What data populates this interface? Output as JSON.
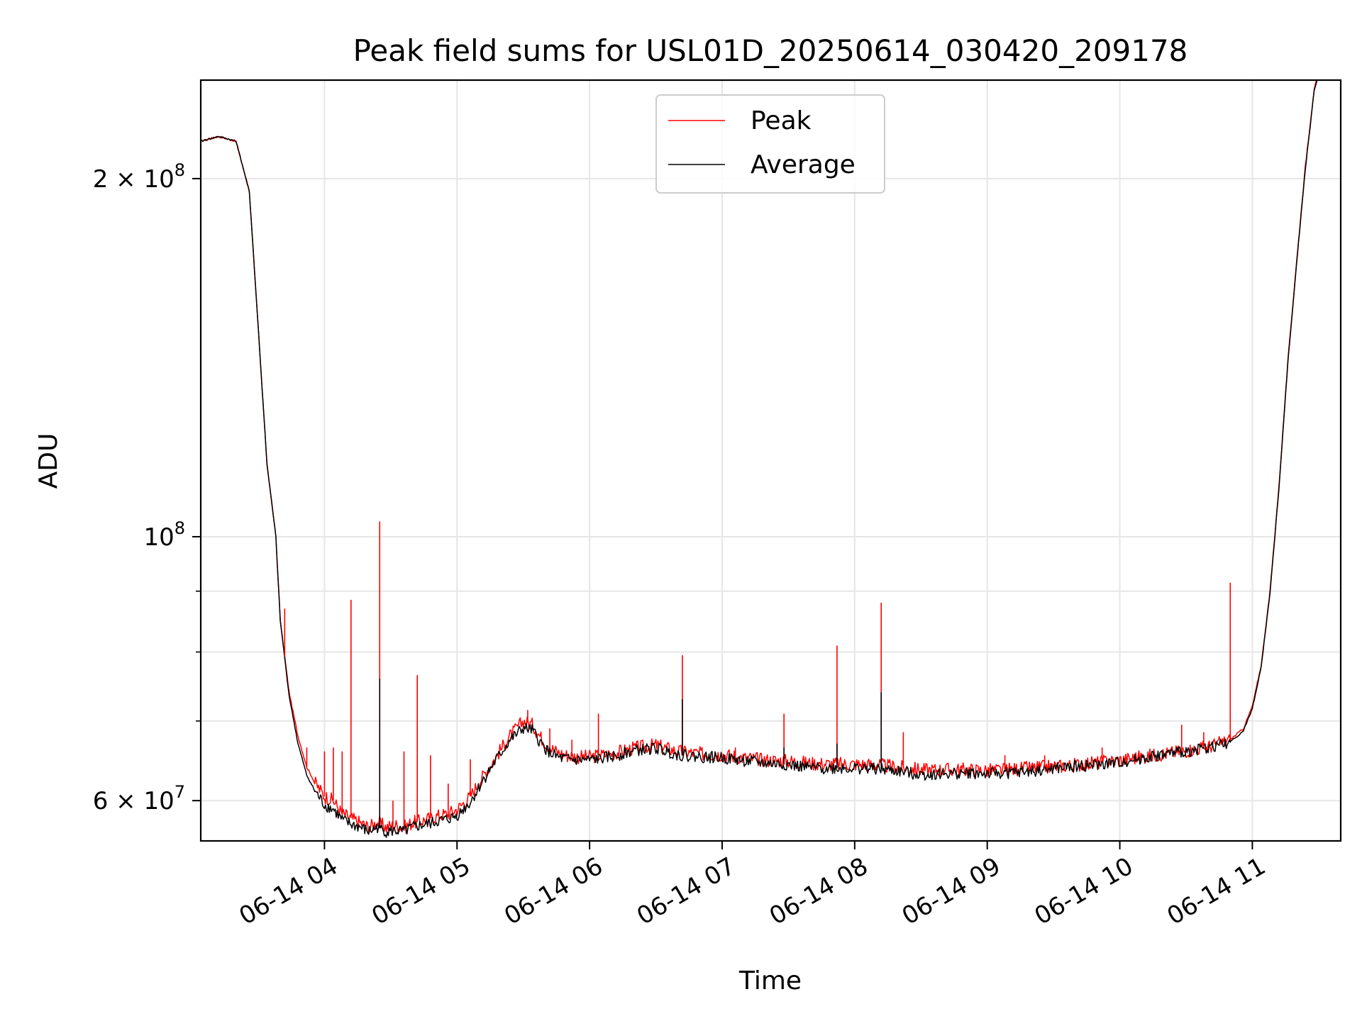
{
  "chart_data": {
    "type": "line",
    "title": "Peak field sums for USL01D_20250614_030420_209178",
    "xlabel": "Time",
    "ylabel": "ADU",
    "y_scale": "log",
    "ylim": [
      55500000,
      242000000
    ],
    "xlim": [
      "2025-06-14 03:04",
      "2025-06-14 11:40"
    ],
    "grid": true,
    "legend_position": "top-center",
    "x_tick_labels": [
      "06-14 04",
      "06-14 05",
      "06-14 06",
      "06-14 07",
      "06-14 08",
      "06-14 09",
      "06-14 10",
      "06-14 11"
    ],
    "x_ticks": [
      "2025-06-14 04:00",
      "2025-06-14 05:00",
      "2025-06-14 06:00",
      "2025-06-14 07:00",
      "2025-06-14 08:00",
      "2025-06-14 09:00",
      "2025-06-14 10:00",
      "2025-06-14 11:00"
    ],
    "y_major_ticks": [
      60000000,
      100000000,
      200000000
    ],
    "y_major_tick_labels": [
      {
        "base": "6 × 10",
        "exp": "7"
      },
      {
        "base": "10",
        "exp": "8"
      },
      {
        "base": "2 × 10",
        "exp": "8"
      }
    ],
    "y_minor_ticks": [
      70000000,
      80000000,
      90000000
    ],
    "series": [
      {
        "name": "Peak",
        "color": "#ff0000",
        "x": [
          "03:04",
          "03:12",
          "03:20",
          "03:26",
          "03:30",
          "03:34",
          "03:38",
          "03:40",
          "03:44",
          "03:48",
          "03:52",
          "03:56",
          "04:00",
          "04:04",
          "04:08",
          "04:12",
          "04:16",
          "04:20",
          "04:24",
          "04:28",
          "04:32",
          "04:36",
          "04:40",
          "04:44",
          "04:48",
          "04:52",
          "04:56",
          "05:00",
          "05:06",
          "05:12",
          "05:18",
          "05:24",
          "05:30",
          "05:34",
          "05:38",
          "05:42",
          "05:46",
          "05:50",
          "05:54",
          "06:00",
          "06:10",
          "06:20",
          "06:30",
          "06:40",
          "06:50",
          "07:00",
          "07:10",
          "07:20",
          "07:30",
          "07:40",
          "07:50",
          "08:00",
          "08:10",
          "08:20",
          "08:30",
          "08:40",
          "08:50",
          "09:00",
          "09:10",
          "09:20",
          "09:30",
          "09:40",
          "09:50",
          "10:00",
          "10:10",
          "10:20",
          "10:30",
          "10:40",
          "10:50",
          "10:56",
          "11:00",
          "11:04",
          "11:08",
          "11:12",
          "11:16",
          "11:20",
          "11:24",
          "11:28",
          "11:30"
        ],
        "y": [
          215000000,
          217000000,
          215000000,
          195000000,
          150000000,
          115000000,
          100000000,
          85000000,
          74000000,
          68000000,
          64000000,
          62000000,
          60500000,
          60000000,
          58500000,
          58000000,
          57500000,
          57000000,
          57500000,
          57000000,
          57200000,
          57000000,
          57500000,
          57700000,
          58000000,
          58300000,
          58500000,
          59000000,
          60500000,
          63000000,
          65500000,
          68000000,
          70000000,
          69500000,
          67800000,
          66500000,
          65800000,
          65500000,
          65300000,
          65300000,
          65700000,
          66400000,
          66800000,
          66000000,
          65700000,
          65600000,
          65200000,
          64900000,
          64800000,
          64500000,
          64400000,
          64400000,
          64300000,
          64000000,
          63700000,
          63700000,
          63700000,
          63600000,
          63700000,
          63900000,
          64100000,
          64300000,
          64600000,
          64900000,
          65300000,
          65700000,
          66100000,
          66600000,
          67500000,
          69000000,
          72000000,
          78000000,
          90000000,
          110000000,
          140000000,
          170000000,
          205000000,
          238000000,
          245000000
        ]
      },
      {
        "name": "Average",
        "color": "#000000",
        "x": [
          "03:04",
          "03:12",
          "03:20",
          "03:26",
          "03:30",
          "03:34",
          "03:38",
          "03:40",
          "03:44",
          "03:48",
          "03:52",
          "03:56",
          "04:00",
          "04:04",
          "04:08",
          "04:12",
          "04:16",
          "04:20",
          "04:24",
          "04:28",
          "04:32",
          "04:36",
          "04:40",
          "04:44",
          "04:48",
          "04:52",
          "04:56",
          "05:00",
          "05:06",
          "05:12",
          "05:18",
          "05:24",
          "05:30",
          "05:34",
          "05:38",
          "05:42",
          "05:46",
          "05:50",
          "05:54",
          "06:00",
          "06:10",
          "06:20",
          "06:30",
          "06:40",
          "06:50",
          "07:00",
          "07:10",
          "07:20",
          "07:30",
          "07:40",
          "07:50",
          "08:00",
          "08:10",
          "08:20",
          "08:30",
          "08:40",
          "08:50",
          "09:00",
          "09:10",
          "09:20",
          "09:30",
          "09:40",
          "09:50",
          "10:00",
          "10:10",
          "10:20",
          "10:30",
          "10:40",
          "10:50",
          "10:56",
          "11:00",
          "11:04",
          "11:08",
          "11:12",
          "11:16",
          "11:20",
          "11:24",
          "11:28",
          "11:30"
        ],
        "y": [
          215000000,
          217000000,
          215000000,
          195000000,
          150000000,
          115000000,
          100000000,
          85000000,
          73500000,
          67000000,
          63000000,
          61000000,
          59500000,
          59000000,
          57800000,
          57300000,
          57000000,
          56500000,
          57000000,
          56500000,
          56600000,
          56500000,
          57000000,
          57200000,
          57400000,
          57700000,
          57900000,
          58300000,
          59800000,
          62500000,
          65000000,
          67500000,
          69000000,
          68800000,
          67000000,
          65800000,
          65200000,
          65000000,
          64900000,
          64900000,
          65300000,
          66100000,
          66400000,
          65600000,
          65300000,
          65200000,
          64800000,
          64500000,
          64300000,
          63900000,
          63900000,
          63900000,
          63800000,
          63500000,
          63100000,
          63200000,
          63300000,
          63200000,
          63300000,
          63500000,
          63800000,
          64100000,
          64300000,
          64600000,
          65100000,
          65600000,
          66000000,
          66500000,
          67200000,
          68700000,
          71700000,
          77700000,
          89700000,
          109500000,
          139500000,
          169500000,
          204000000,
          237000000,
          245000000
        ]
      }
    ],
    "peak_spikes": [
      {
        "x": "03:30",
        "y": 150000000
      },
      {
        "x": "03:38",
        "y": 100000000
      },
      {
        "x": "03:42",
        "y": 87000000
      },
      {
        "x": "03:52",
        "y": 66500000
      },
      {
        "x": "04:00",
        "y": 66000000
      },
      {
        "x": "04:04",
        "y": 66500000
      },
      {
        "x": "04:08",
        "y": 66000000
      },
      {
        "x": "04:12",
        "y": 88500000
      },
      {
        "x": "04:25",
        "y": 103000000
      },
      {
        "x": "04:31",
        "y": 60000000
      },
      {
        "x": "04:36",
        "y": 66000000
      },
      {
        "x": "04:42",
        "y": 76500000
      },
      {
        "x": "04:48",
        "y": 65500000
      },
      {
        "x": "04:56",
        "y": 62000000
      },
      {
        "x": "05:06",
        "y": 65000000
      },
      {
        "x": "05:32",
        "y": 71500000
      },
      {
        "x": "05:42",
        "y": 69000000
      },
      {
        "x": "05:52",
        "y": 67500000
      },
      {
        "x": "06:04",
        "y": 71000000
      },
      {
        "x": "06:42",
        "y": 79500000
      },
      {
        "x": "07:06",
        "y": 66500000
      },
      {
        "x": "07:28",
        "y": 71000000
      },
      {
        "x": "07:52",
        "y": 81000000
      },
      {
        "x": "08:12",
        "y": 88000000
      },
      {
        "x": "08:22",
        "y": 68500000
      },
      {
        "x": "09:08",
        "y": 65500000
      },
      {
        "x": "09:26",
        "y": 65500000
      },
      {
        "x": "09:52",
        "y": 66500000
      },
      {
        "x": "10:28",
        "y": 69500000
      },
      {
        "x": "10:38",
        "y": 68500000
      },
      {
        "x": "10:50",
        "y": 91500000
      }
    ],
    "average_spikes": [
      {
        "x": "04:25",
        "y": 76000000
      },
      {
        "x": "06:42",
        "y": 73000000
      },
      {
        "x": "08:12",
        "y": 74000000
      },
      {
        "x": "07:52",
        "y": 67000000
      },
      {
        "x": "07:28",
        "y": 66500000
      }
    ]
  }
}
